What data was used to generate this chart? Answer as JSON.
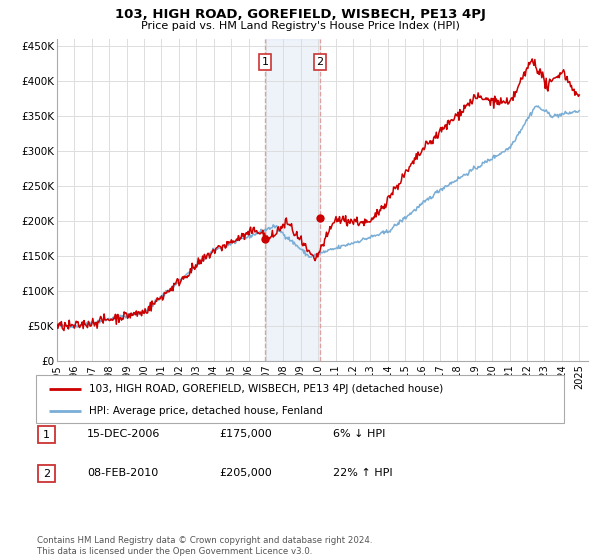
{
  "title": "103, HIGH ROAD, GOREFIELD, WISBECH, PE13 4PJ",
  "subtitle": "Price paid vs. HM Land Registry's House Price Index (HPI)",
  "property_label": "103, HIGH ROAD, GOREFIELD, WISBECH, PE13 4PJ (detached house)",
  "hpi_label": "HPI: Average price, detached house, Fenland",
  "property_color": "#cc0000",
  "hpi_color": "#7aaed6",
  "shade_color": "#ddeeff",
  "transaction1_date": "15-DEC-2006",
  "transaction1_price": 175000,
  "transaction1_pct": "6% ↓ HPI",
  "transaction2_date": "08-FEB-2010",
  "transaction2_price": 205000,
  "transaction2_pct": "22% ↑ HPI",
  "transaction1_x": 2006.96,
  "transaction2_x": 2010.11,
  "ylim": [
    0,
    460000
  ],
  "xlim_start": 1995,
  "xlim_end": 2025.5,
  "yticks": [
    0,
    50000,
    100000,
    150000,
    200000,
    250000,
    300000,
    350000,
    400000,
    450000
  ],
  "ytick_labels": [
    "£0",
    "£50K",
    "£100K",
    "£150K",
    "£200K",
    "£250K",
    "£300K",
    "£350K",
    "£400K",
    "£450K"
  ],
  "xticks": [
    1995,
    1996,
    1997,
    1998,
    1999,
    2000,
    2001,
    2002,
    2003,
    2004,
    2005,
    2006,
    2007,
    2008,
    2009,
    2010,
    2011,
    2012,
    2013,
    2014,
    2015,
    2016,
    2017,
    2018,
    2019,
    2020,
    2021,
    2022,
    2023,
    2024,
    2025
  ],
  "footnote": "Contains HM Land Registry data © Crown copyright and database right 2024.\nThis data is licensed under the Open Government Licence v3.0.",
  "background_color": "#ffffff",
  "grid_color": "#dddddd"
}
